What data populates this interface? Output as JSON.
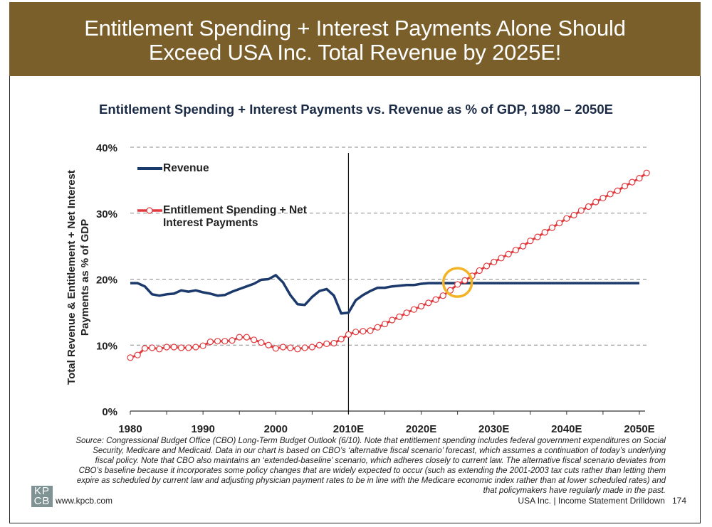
{
  "header": {
    "title_line1": "Entitlement Spending + Interest Payments Alone Should",
    "title_line2": "Exceed USA Inc. Total Revenue by 2025E!"
  },
  "chart_data": {
    "type": "line",
    "title": "Entitlement Spending + Interest Payments vs. Revenue as % of GDP, 1980 – 2050E",
    "xlabel": "",
    "ylabel_line1": "Total Revenue & Entitlement + Net Interest",
    "ylabel_line2": "Payments as % of GDP",
    "ylim": [
      0,
      40
    ],
    "xlim": [
      1980,
      2050
    ],
    "y_ticks": [
      0,
      10,
      20,
      30,
      40
    ],
    "y_tick_labels": [
      "0%",
      "10%",
      "20%",
      "30%",
      "40%"
    ],
    "x_ticks": [
      1980,
      1990,
      2000,
      2010,
      2020,
      2030,
      2040,
      2050
    ],
    "x_tick_labels": [
      "1980",
      "1990",
      "2000",
      "2010E",
      "2020E",
      "2030E",
      "2040E",
      "2050E"
    ],
    "grid": "horizontal-dashed",
    "legend_position": "top-left",
    "annotations": [
      {
        "type": "vertical-line",
        "x": 2010,
        "label": "actual vs. estimate divider"
      },
      {
        "type": "circle",
        "x": 2025,
        "y": 19.5,
        "color": "#f2b325",
        "label": "crossover point"
      }
    ],
    "series": [
      {
        "name": "Revenue",
        "color": "#1b3a6b",
        "marker": "none",
        "x_start": 1980,
        "values": [
          19.4,
          19.4,
          18.9,
          17.7,
          17.5,
          17.7,
          17.8,
          18.3,
          18.1,
          18.3,
          18.0,
          17.8,
          17.5,
          17.6,
          18.1,
          18.5,
          18.9,
          19.3,
          19.9,
          20.0,
          20.6,
          19.5,
          17.6,
          16.2,
          16.1,
          17.3,
          18.2,
          18.5,
          17.5,
          14.8,
          14.9,
          16.8,
          17.6,
          18.2,
          18.7,
          18.7,
          18.9,
          19.0,
          19.1,
          19.1,
          19.3,
          19.4,
          19.4,
          19.4,
          19.4,
          19.4,
          19.4,
          19.4,
          19.4,
          19.4,
          19.4,
          19.4,
          19.4,
          19.4,
          19.4,
          19.4,
          19.4,
          19.4,
          19.4,
          19.4,
          19.4,
          19.4,
          19.4,
          19.4,
          19.4,
          19.4,
          19.4,
          19.4,
          19.4,
          19.4,
          19.4
        ]
      },
      {
        "name": "Entitlement Spending + Net Interest Payments",
        "color": "#e03a3e",
        "marker": "open-circle",
        "x_start": 1980,
        "values": [
          8.1,
          8.5,
          9.5,
          9.6,
          9.4,
          9.7,
          9.7,
          9.6,
          9.6,
          9.7,
          9.9,
          10.5,
          10.6,
          10.6,
          10.7,
          11.2,
          11.2,
          10.8,
          10.4,
          10.0,
          9.5,
          9.7,
          9.6,
          9.4,
          9.6,
          9.7,
          10.0,
          10.2,
          10.3,
          10.9,
          11.6,
          12.0,
          12.1,
          12.2,
          12.7,
          13.2,
          13.8,
          14.3,
          14.9,
          15.4,
          15.9,
          16.4,
          16.9,
          17.5,
          18.3,
          19.2,
          19.8,
          20.5,
          21.3,
          22.0,
          22.6,
          23.2,
          23.8,
          24.4,
          25.0,
          25.8,
          26.4,
          27.1,
          27.8,
          28.5,
          29.2,
          29.7,
          30.4,
          31.0,
          31.7,
          32.3,
          32.9,
          33.4,
          34.1,
          34.7,
          35.3,
          36.1
        ]
      }
    ]
  },
  "legend": {
    "revenue_label": "Revenue",
    "entitlement_label_line1": "Entitlement Spending + Net",
    "entitlement_label_line2": "Interest Payments"
  },
  "footer": {
    "source_line1": "Source: Congressional Budget Office (CBO) Long-Term Budget Outlook (6/10). Note that entitlement spending includes federal government expenditures on Social",
    "source_line2": "Security, Medicare and Medicaid. Data in our chart is based on CBO’s ‘alternative fiscal scenario’ forecast, which assumes a continuation of today’s underlying",
    "source_line3": "fiscal policy. Note that CBO also maintains an ‘extended-baseline’ scenario, which adheres closely to current law.  The alternative fiscal scenario deviates from",
    "source_line4": "CBO’s baseline because it incorporates some policy changes that are widely expected to occur (such as extending the 2001-2003 tax cuts rather than letting them",
    "source_line5": "expire as scheduled by current law and adjusting physician payment rates to be in line with the Medicare economic index rather than at lower scheduled rates) and",
    "source_line6": "that policymakers have regularly made in the past.",
    "logo_top": "KP",
    "logo_bottom": "CB",
    "url": "www.kpcb.com",
    "section": "USA Inc. | Income Statement Drilldown",
    "page_number": "174"
  }
}
